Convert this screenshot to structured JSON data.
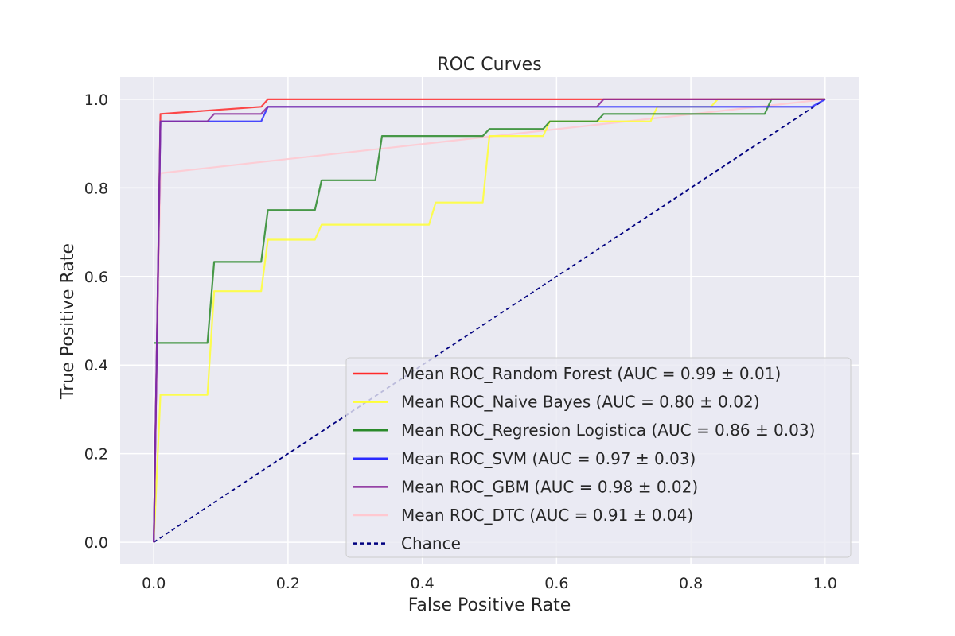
{
  "chart_data": {
    "type": "line",
    "title": "ROC Curves",
    "xlabel": "False Positive Rate",
    "ylabel": "True Positive Rate",
    "xlim": [
      -0.05,
      1.05
    ],
    "ylim": [
      -0.05,
      1.05
    ],
    "xticks": [
      0.0,
      0.2,
      0.4,
      0.6,
      0.8,
      1.0
    ],
    "yticks": [
      0.0,
      0.2,
      0.4,
      0.6,
      0.8,
      1.0
    ],
    "xtick_labels": [
      "0.0",
      "0.2",
      "0.4",
      "0.6",
      "0.8",
      "1.0"
    ],
    "ytick_labels": [
      "0.0",
      "0.2",
      "0.4",
      "0.6",
      "0.8",
      "1.0"
    ],
    "grid": true,
    "legend_position": "lower-right",
    "series": [
      {
        "name": "Mean ROC_Random Forest (AUC = 0.99 ± 0.01)",
        "color": "#ff2a2a",
        "style": "solid",
        "x": [
          0.0,
          0.01,
          0.16,
          0.17,
          0.5,
          1.0
        ],
        "y": [
          0.0,
          0.967,
          0.983,
          1.0,
          1.0,
          1.0
        ]
      },
      {
        "name": "Mean ROC_Naive Bayes (AUC = 0.80 ± 0.02)",
        "color": "#ffff33",
        "style": "solid",
        "x": [
          0.0,
          0.01,
          0.08,
          0.09,
          0.16,
          0.17,
          0.24,
          0.25,
          0.41,
          0.42,
          0.49,
          0.5,
          0.58,
          0.59,
          0.74,
          0.75,
          0.83,
          0.84,
          1.0
        ],
        "y": [
          0.0,
          0.333,
          0.333,
          0.567,
          0.567,
          0.683,
          0.683,
          0.717,
          0.717,
          0.767,
          0.767,
          0.917,
          0.917,
          0.95,
          0.95,
          0.983,
          0.983,
          1.0,
          1.0
        ]
      },
      {
        "name": "Mean ROC_Regresion Logistica (AUC = 0.86 ± 0.03)",
        "color": "#2a8a2a",
        "style": "solid",
        "x": [
          0.0,
          0.08,
          0.09,
          0.16,
          0.17,
          0.24,
          0.25,
          0.33,
          0.34,
          0.49,
          0.5,
          0.58,
          0.59,
          0.66,
          0.67,
          0.91,
          0.92,
          1.0
        ],
        "y": [
          0.45,
          0.45,
          0.633,
          0.633,
          0.75,
          0.75,
          0.817,
          0.817,
          0.917,
          0.917,
          0.933,
          0.933,
          0.95,
          0.95,
          0.967,
          0.967,
          1.0,
          1.0
        ]
      },
      {
        "name": "Mean ROC_SVM (AUC = 0.97 ± 0.03)",
        "color": "#2a2aff",
        "style": "solid",
        "x": [
          0.0,
          0.01,
          0.16,
          0.17,
          0.66,
          0.67,
          0.98,
          1.0
        ],
        "y": [
          0.0,
          0.95,
          0.95,
          0.983,
          0.983,
          0.983,
          0.983,
          1.0
        ]
      },
      {
        "name": "Mean ROC_GBM (AUC = 0.98 ± 0.02)",
        "color": "#8a2a9a",
        "style": "solid",
        "x": [
          0.0,
          0.01,
          0.08,
          0.09,
          0.16,
          0.17,
          0.66,
          0.67,
          1.0
        ],
        "y": [
          0.0,
          0.95,
          0.95,
          0.967,
          0.967,
          0.983,
          0.983,
          1.0,
          1.0
        ]
      },
      {
        "name": "Mean ROC_DTC (AUC = 0.91 ± 0.04)",
        "color": "#ffc8d0",
        "style": "solid",
        "x": [
          0.0,
          0.01,
          1.0
        ],
        "y": [
          0.0,
          0.833,
          1.0
        ]
      },
      {
        "name": "Chance",
        "color": "#00007f",
        "style": "dashed",
        "x": [
          0.0,
          1.0
        ],
        "y": [
          0.0,
          1.0
        ]
      }
    ]
  }
}
